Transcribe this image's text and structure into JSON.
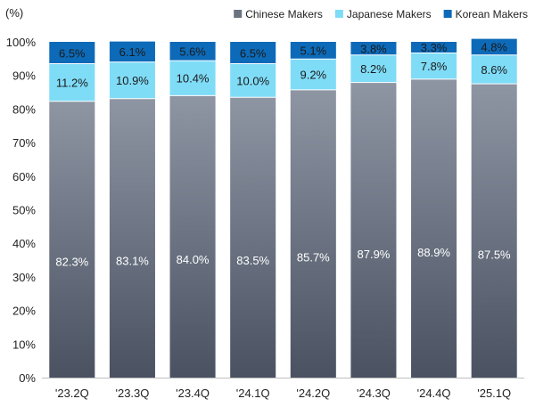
{
  "chart_data": {
    "type": "bar",
    "stacked": true,
    "unit_label": "(%)",
    "title": "",
    "xlabel": "",
    "ylabel": "",
    "ylim": [
      0,
      100
    ],
    "y_ticks": [
      "0%",
      "10%",
      "20%",
      "30%",
      "40%",
      "50%",
      "60%",
      "70%",
      "80%",
      "90%",
      "100%"
    ],
    "grid": false,
    "legend_position": "top-right",
    "categories": [
      "'23.2Q",
      "'23.3Q",
      "'23.4Q",
      "'24.1Q",
      "'24.2Q",
      "'24.3Q",
      "'24.4Q",
      "'25.1Q"
    ],
    "series": [
      {
        "name": "Chinese Makers",
        "color": "#5f6675",
        "label_color": "#ffffff",
        "values": [
          82.3,
          83.1,
          84.0,
          83.5,
          85.7,
          87.9,
          88.9,
          87.5
        ],
        "labels": [
          "82.3%",
          "83.1%",
          "84.0%",
          "83.5%",
          "85.7%",
          "87.9%",
          "88.9%",
          "87.5%"
        ]
      },
      {
        "name": "Japanese Makers",
        "color": "#7fdcf7",
        "label_color": "#1a1a1a",
        "values": [
          11.2,
          10.9,
          10.4,
          10.0,
          9.2,
          8.2,
          7.8,
          8.6
        ],
        "labels": [
          "11.2%",
          "10.9%",
          "10.4%",
          "10.0%",
          "9.2%",
          "8.2%",
          "7.8%",
          "8.6%"
        ]
      },
      {
        "name": "Korean Makers",
        "color": "#0d6ab8",
        "label_color": "#1a1a1a",
        "values": [
          6.5,
          6.1,
          5.6,
          6.5,
          5.1,
          3.8,
          3.3,
          4.8
        ],
        "labels": [
          "6.5%",
          "6.1%",
          "5.6%",
          "6.5%",
          "5.1%",
          "3.8%",
          "3.3%",
          "4.8%"
        ]
      }
    ]
  }
}
